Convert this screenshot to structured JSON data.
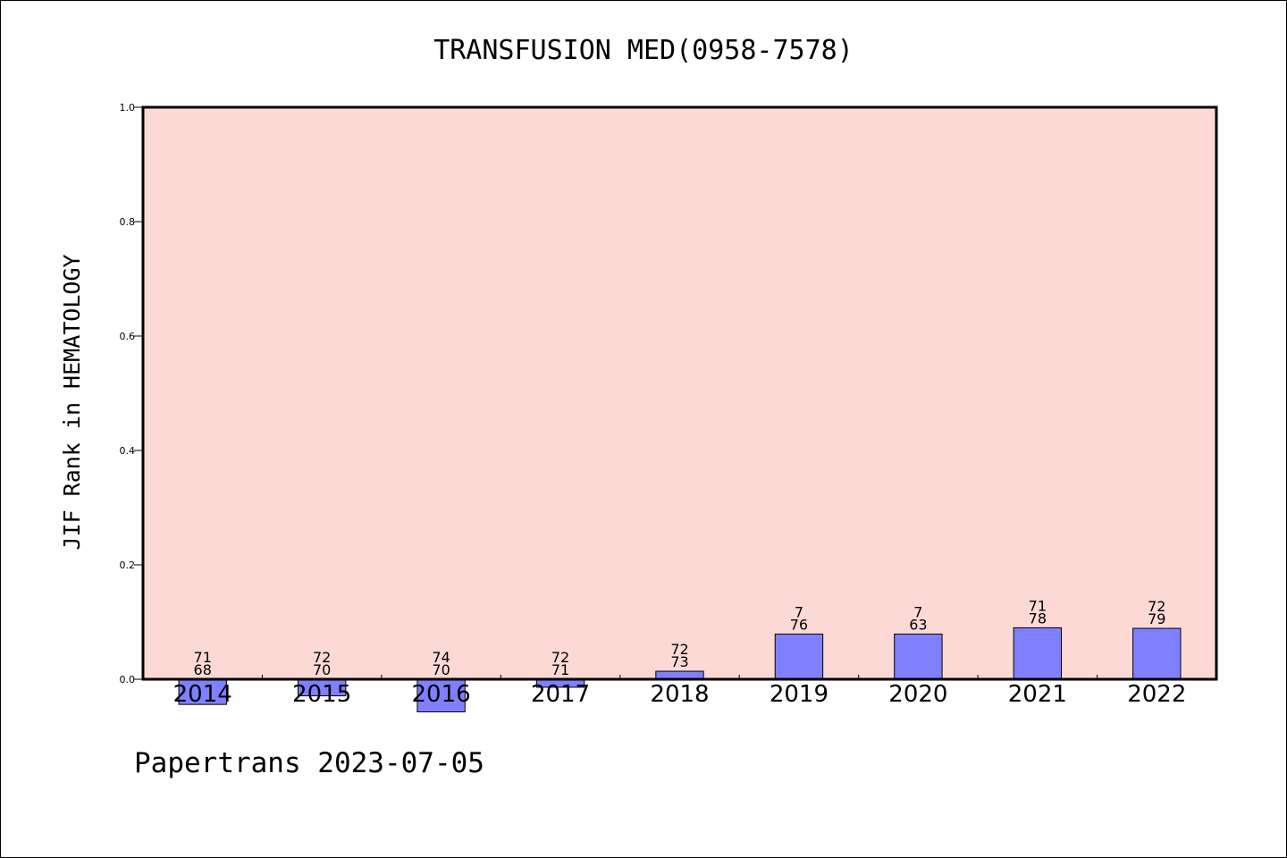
{
  "chart_data": {
    "type": "bar",
    "title": "TRANSFUSION MED(0958-7578)",
    "ylabel": "JIF Rank in HEMATOLOGY",
    "xlabel": "",
    "ylim": [
      0.0,
      1.0
    ],
    "yticks": [
      "0.0",
      "0.2",
      "0.4",
      "0.6",
      "0.8",
      "1.0"
    ],
    "ytick_values": [
      0.0,
      0.2,
      0.4,
      0.6,
      0.8,
      1.0
    ],
    "categories": [
      "2014",
      "2015",
      "2016",
      "2017",
      "2018",
      "2019",
      "2020",
      "2021",
      "2022"
    ],
    "values": [
      -0.044,
      -0.029,
      -0.057,
      -0.014,
      0.014,
      0.079,
      0.079,
      0.09,
      0.089
    ],
    "labels_top": [
      "71",
      "72",
      "74",
      "72",
      "72",
      "7",
      "7",
      "71",
      "72"
    ],
    "labels_bottom": [
      "68",
      "70",
      "70",
      "71",
      "73",
      "76",
      "63",
      "78",
      "79"
    ],
    "grid": false,
    "plot_background": "#fdd9d5",
    "bar_color": "#8080ff",
    "edge_color": "#000000"
  },
  "footer": {
    "text": "Papertrans 2023-07-05"
  }
}
